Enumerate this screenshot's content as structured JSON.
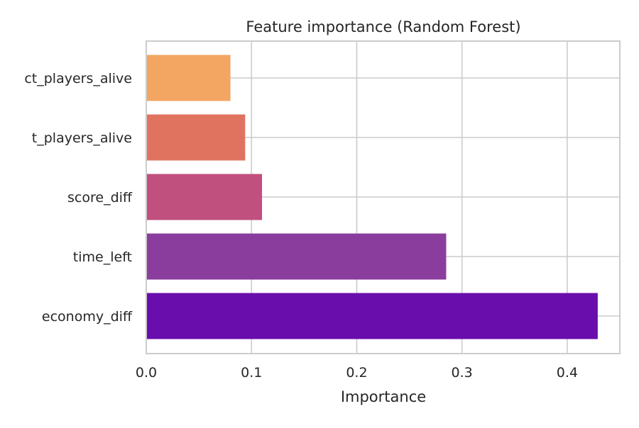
{
  "chart_data": {
    "type": "bar",
    "orientation": "horizontal",
    "title": "Feature importance (Random Forest)",
    "xlabel": "Importance",
    "ylabel": "",
    "xlim": [
      0,
      0.45
    ],
    "xticks": [
      0.0,
      0.1,
      0.2,
      0.3,
      0.4
    ],
    "xtick_labels": [
      "0.0",
      "0.1",
      "0.2",
      "0.3",
      "0.4"
    ],
    "categories": [
      "economy_diff",
      "time_left",
      "score_diff",
      "t_players_alive",
      "ct_players_alive"
    ],
    "values": [
      0.429,
      0.285,
      0.11,
      0.094,
      0.08
    ],
    "colors": [
      "#6a0dad",
      "#8b3d9e",
      "#c0507e",
      "#e07360",
      "#f3a562"
    ],
    "grid": true,
    "legend": "none"
  }
}
